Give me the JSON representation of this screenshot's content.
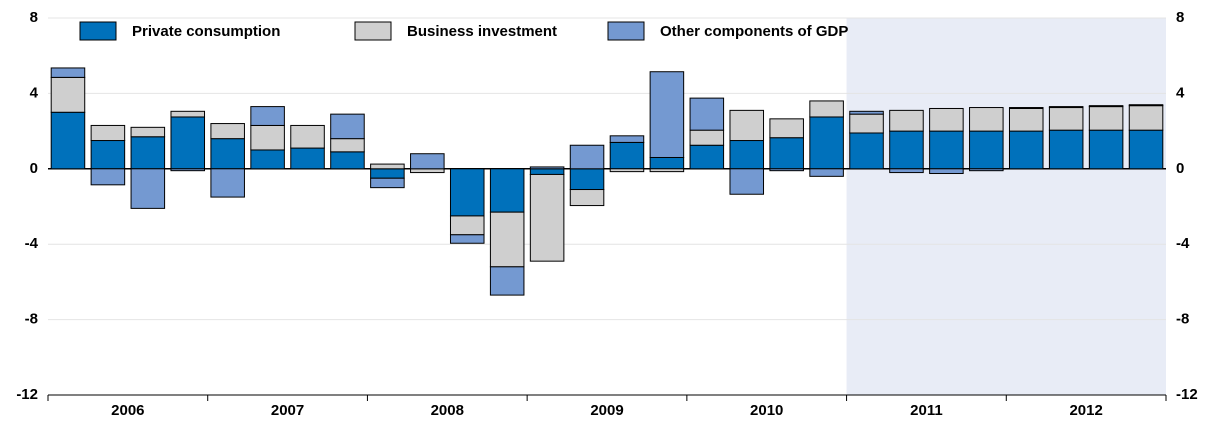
{
  "chart_data": {
    "type": "stacked_bar",
    "categories": [
      null,
      "2006",
      null,
      null,
      null,
      "2007",
      null,
      null,
      null,
      "2008",
      null,
      null,
      null,
      "2009",
      null,
      null,
      null,
      "2010",
      null,
      null,
      null,
      "2011",
      null,
      null,
      null,
      "2012",
      null,
      null
    ],
    "series": [
      {
        "name": "Private consumption",
        "color": "#0071bb",
        "values": [
          3.0,
          1.5,
          1.7,
          2.75,
          1.6,
          1.0,
          1.1,
          0.9,
          -0.5,
          0,
          -2.5,
          -2.3,
          -0.3,
          -1.1,
          1.4,
          0.6,
          1.25,
          1.5,
          1.65,
          2.75,
          1.9,
          2.0,
          2.0,
          2.0,
          2.0,
          2.05,
          2.05,
          2.05
        ]
      },
      {
        "name": "Business investment",
        "color": "#cfcfcf",
        "values": [
          1.85,
          0.8,
          0.5,
          0.3,
          0.8,
          1.3,
          1.2,
          0.7,
          0.25,
          -0.2,
          -1.0,
          -2.9,
          -4.6,
          -0.85,
          -0.15,
          -0.15,
          0.8,
          1.6,
          1.0,
          0.85,
          1.0,
          1.1,
          1.2,
          1.25,
          1.2,
          1.2,
          1.25,
          1.3
        ]
      },
      {
        "name": "Other components of GDP",
        "color": "#7499d1",
        "values": [
          0.5,
          -0.85,
          -2.1,
          -0.1,
          -1.5,
          1.0,
          0,
          1.3,
          -0.5,
          0.8,
          -0.45,
          -1.5,
          0.1,
          1.25,
          0.35,
          4.55,
          1.7,
          -1.35,
          -0.1,
          -0.4,
          0.15,
          -0.2,
          -0.25,
          -0.1,
          0.05,
          0.05,
          0.05,
          0.05
        ]
      }
    ],
    "ylim": [
      -12,
      8
    ],
    "yticks": [
      -12,
      -8,
      -4,
      0,
      4,
      8
    ],
    "shaded_from_index": 20,
    "shade_color": "#e8ecf6",
    "grid": true
  }
}
